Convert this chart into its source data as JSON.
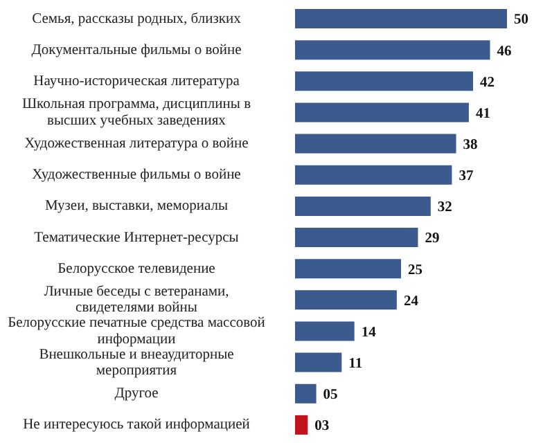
{
  "chart_data": {
    "type": "bar",
    "orientation": "horizontal",
    "categories": [
      "Семья, рассказы родных, близких",
      "Документальные фильмы о войне",
      "Научно-историческая литература",
      "Школьная программа, дисциплины в высших учебных заведениях",
      "Художественная литература о войне",
      "Художественные фильмы о войне",
      "Музеи, выставки, мемориалы",
      "Тематические Интернет-ресурсы",
      "Белорусское телевидение",
      "Личные беседы с ветеранами, свидетелями войны",
      "Белорусские печатные средства массовой информации",
      "Внешкольные и внеаудиторные мероприятия",
      "Другое",
      "Не интересуюсь такой информацией"
    ],
    "values": [
      50,
      46,
      42,
      41,
      38,
      37,
      32,
      29,
      25,
      24,
      14,
      11,
      5,
      3
    ],
    "value_labels": [
      "50",
      "46",
      "42",
      "41",
      "38",
      "37",
      "32",
      "29",
      "25",
      "24",
      "14",
      "11",
      "05",
      "03"
    ],
    "colors": [
      "#3b5b8f",
      "#3b5b8f",
      "#3b5b8f",
      "#3b5b8f",
      "#3b5b8f",
      "#3b5b8f",
      "#3b5b8f",
      "#3b5b8f",
      "#3b5b8f",
      "#3b5b8f",
      "#3b5b8f",
      "#3b5b8f",
      "#3b5b8f",
      "#c0141c"
    ]
  }
}
